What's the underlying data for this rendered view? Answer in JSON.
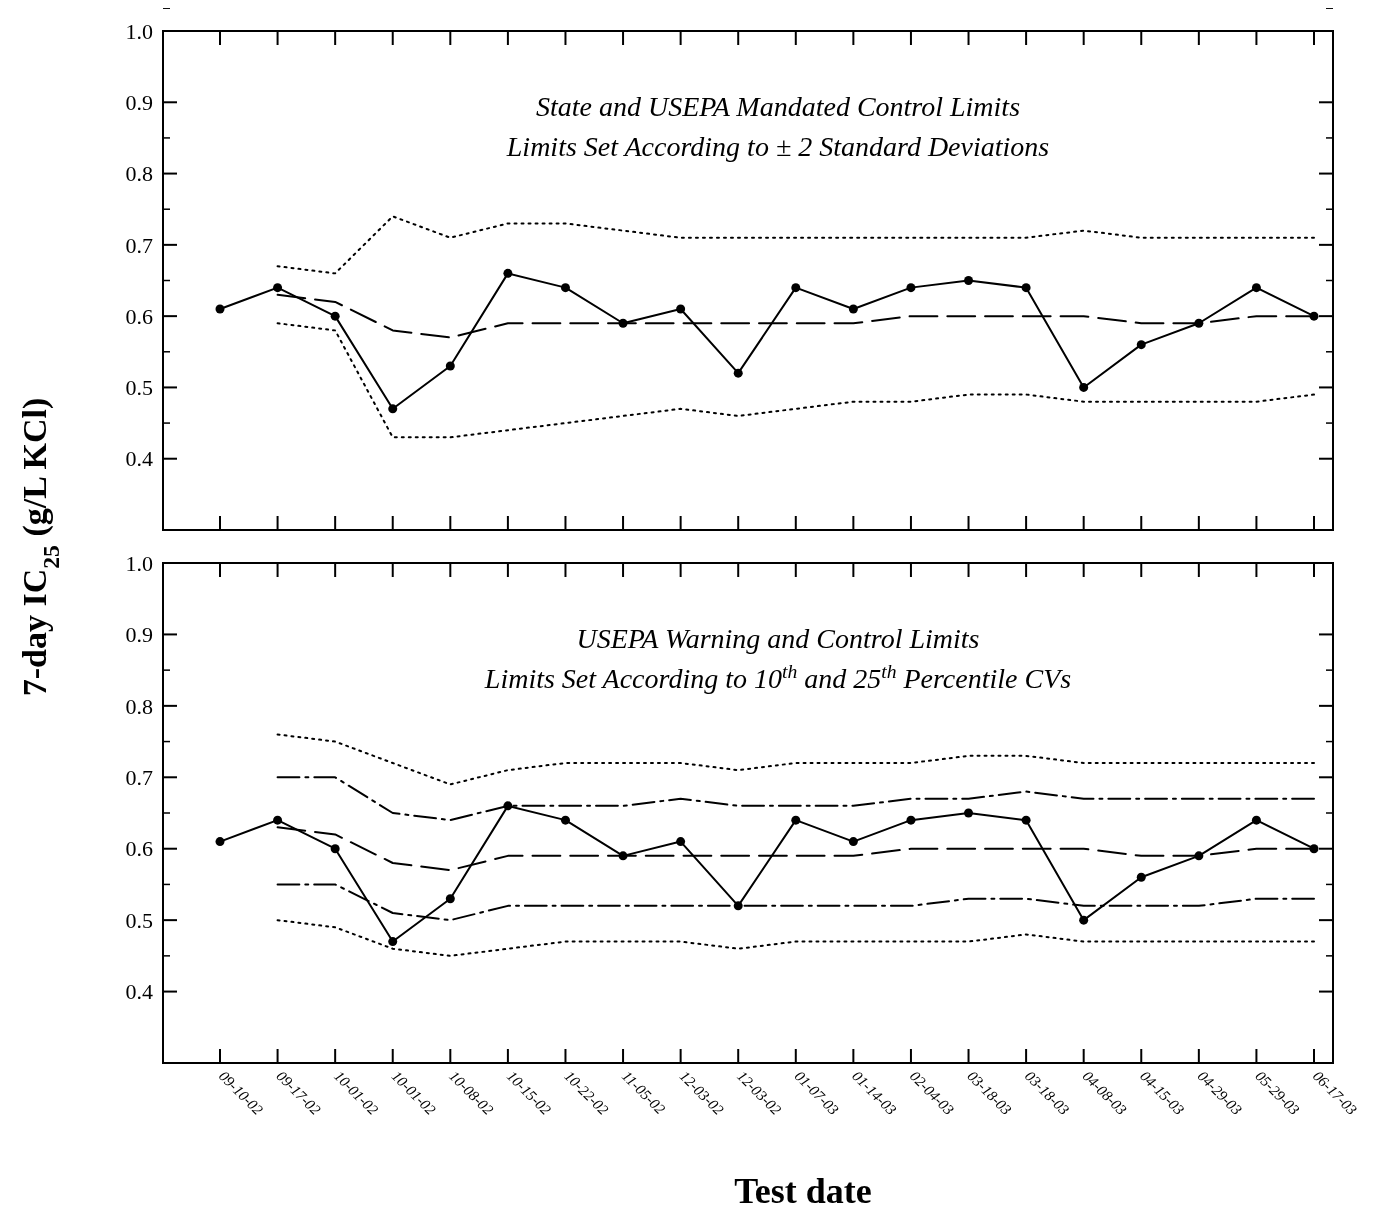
{
  "chart_data": [
    {
      "type": "line",
      "title": "State and USEPA Mandated Control Limits",
      "subtitle": "Limits Set According to ± 2 Standard Deviations",
      "ylabel": "7-day IC$_{25}$ (g/L KCl)",
      "categories": [
        null,
        null,
        null,
        null,
        null,
        null,
        null,
        null,
        null,
        null,
        null,
        null,
        null,
        null,
        null,
        null,
        null,
        null,
        null,
        null
      ],
      "ylim": [
        0.3,
        1.0
      ],
      "yticks": [
        0.4,
        0.5,
        0.6,
        0.7,
        0.8,
        0.9,
        {
          "value": 1.0,
          "label": "1.0"
        }
      ],
      "tick_labels": "y",
      "grid": false,
      "series": [
        {
          "color": "#000000",
          "marker": "circle",
          "line_style": "solid",
          "values": [
            0.61,
            0.64,
            0.6,
            0.47,
            0.53,
            0.66,
            0.64,
            0.59,
            0.61,
            0.52,
            0.64,
            0.61,
            0.64,
            0.65,
            0.64,
            0.5,
            0.56,
            0.59,
            0.64,
            0.6
          ]
        },
        {
          "color": "#000000",
          "marker": "none",
          "line_style": "dashed",
          "values": [
            null,
            0.63,
            0.62,
            0.58,
            0.57,
            0.59,
            0.59,
            0.59,
            0.59,
            0.59,
            0.59,
            0.59,
            0.6,
            0.6,
            0.6,
            0.6,
            0.59,
            0.59,
            0.6,
            0.6
          ]
        },
        {
          "color": "#000000",
          "marker": "none",
          "line_style": "dotted",
          "values": [
            null,
            0.67,
            0.66,
            0.74,
            0.71,
            0.73,
            0.73,
            0.72,
            0.71,
            0.71,
            0.71,
            0.71,
            0.71,
            0.71,
            0.71,
            0.72,
            0.71,
            0.71,
            0.71,
            0.71
          ]
        },
        {
          "color": "#000000",
          "marker": "none",
          "line_style": "dotted",
          "values": [
            null,
            0.59,
            0.58,
            0.43,
            0.43,
            0.44,
            0.45,
            0.46,
            0.47,
            0.46,
            0.47,
            0.48,
            0.48,
            0.49,
            0.49,
            0.48,
            0.48,
            0.48,
            0.48,
            0.49
          ]
        }
      ]
    },
    {
      "type": "line",
      "title": "USEPA Warning and Control Limits",
      "subtitle": "Limits Set According to 10$^{th}$ and 25$^{th}$ Percentile CVs",
      "xlabel": "Test date",
      "categories": [
        "09-10-02",
        "09-17-02",
        "10-01-02",
        "10-01-02",
        "10-08-02",
        "10-15-02",
        "10-22-02",
        "11-05-02",
        "12-03-02",
        "12-03-02",
        "01-07-03",
        "01-14-03",
        "02-04-03",
        "03-18-03",
        "03-18-03",
        "04-08-03",
        "04-15-03",
        "04-29-03",
        "05-29-03",
        "06-17-03"
      ],
      "ylim": [
        0.3,
        1.0
      ],
      "yticks": [
        0.4,
        0.5,
        0.6,
        0.7,
        0.8,
        0.9,
        {
          "value": 1.0,
          "label": "1.0"
        }
      ],
      "grid": false,
      "series": [
        {
          "color": "#000000",
          "marker": "circle",
          "line_style": "solid",
          "values": [
            0.61,
            0.64,
            0.6,
            0.47,
            0.53,
            0.66,
            0.64,
            0.59,
            0.61,
            0.52,
            0.64,
            0.61,
            0.64,
            0.65,
            0.64,
            0.5,
            0.56,
            0.59,
            0.64,
            0.6
          ]
        },
        {
          "color": "#000000",
          "marker": "none",
          "line_style": "dashed",
          "values": [
            null,
            0.63,
            0.62,
            0.58,
            0.57,
            0.59,
            0.59,
            0.59,
            0.59,
            0.59,
            0.59,
            0.59,
            0.6,
            0.6,
            0.6,
            0.6,
            0.59,
            0.59,
            0.6,
            0.6
          ]
        },
        {
          "color": "#000000",
          "marker": "none",
          "line_style": "dotted",
          "values": [
            null,
            0.76,
            0.75,
            0.72,
            0.69,
            0.71,
            0.72,
            0.72,
            0.72,
            0.71,
            0.72,
            0.72,
            0.72,
            0.73,
            0.73,
            0.72,
            0.72,
            0.72,
            0.72,
            0.72
          ]
        },
        {
          "color": "#000000",
          "marker": "none",
          "line_style": "dashdot",
          "values": [
            null,
            0.7,
            0.7,
            0.65,
            0.64,
            0.66,
            0.66,
            0.66,
            0.67,
            0.66,
            0.66,
            0.66,
            0.67,
            0.67,
            0.68,
            0.67,
            0.67,
            0.67,
            0.67,
            0.67
          ]
        },
        {
          "color": "#000000",
          "marker": "none",
          "line_style": "dashdot",
          "values": [
            null,
            0.55,
            0.55,
            0.51,
            0.5,
            0.52,
            0.52,
            0.52,
            0.52,
            0.52,
            0.52,
            0.52,
            0.52,
            0.53,
            0.53,
            0.52,
            0.52,
            0.52,
            0.53,
            0.53
          ]
        },
        {
          "color": "#000000",
          "marker": "none",
          "line_style": "dotted",
          "values": [
            null,
            0.5,
            0.49,
            0.46,
            0.45,
            0.46,
            0.47,
            0.47,
            0.47,
            0.46,
            0.47,
            0.47,
            0.47,
            0.47,
            0.48,
            0.47,
            0.47,
            0.47,
            0.47,
            0.47
          ]
        }
      ]
    }
  ]
}
